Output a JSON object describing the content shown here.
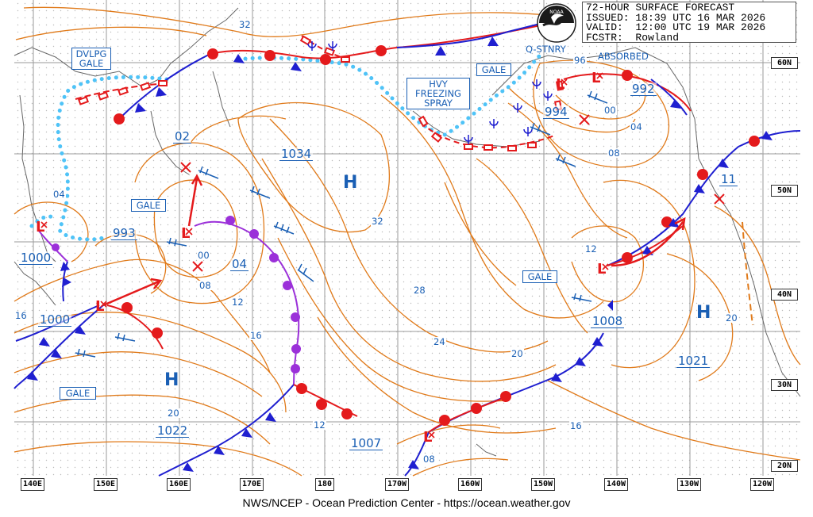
{
  "header": {
    "line1": "72-HOUR SURFACE FORECAST",
    "line2": "ISSUED: 18:39 UTC 16 MAR 2026",
    "line3": "VALID:  12:00 UTC 19 MAR 2026",
    "line4": "FCSTR:  Rowland"
  },
  "logo": {
    "icon": "noaa-logo-icon",
    "text": "NOAA"
  },
  "footer": "NWS/NCEP - Ocean Prediction Center - https://ocean.weather.gov",
  "box_labels": {
    "dvlpg_gale_1": "DVLPG",
    "dvlpg_gale_2": "GALE",
    "gale_west": "GALE",
    "gale_southwest": "GALE",
    "hvy_1": "HVY",
    "hvy_2": "FREEZING",
    "hvy_3": "SPRAY",
    "gale_north": "GALE",
    "gale_east": "GALE"
  },
  "plain_labels": {
    "qstnry": "Q-STNRY",
    "absorbed": "ABSORBED"
  },
  "pressure_centers": {
    "c1034": "1034",
    "c993": "993",
    "c1000_a": "1000",
    "c1000_b": "1000",
    "c1022": "1022",
    "c1007": "1007",
    "c04": "04",
    "c02": "02",
    "c994": "994",
    "c992": "992",
    "c1008": "1008",
    "c1021": "1021",
    "c11": "11"
  },
  "symbols": {
    "high": "H",
    "low": "L"
  },
  "isobar_labels": {
    "i32a": "32",
    "i32b": "32",
    "i04a": "04",
    "i16a": "16",
    "i00a": "00",
    "i08a": "08",
    "i12a": "12",
    "i16b": "16",
    "i20a": "20",
    "i12b": "12",
    "i28": "28",
    "i24": "24",
    "i20b": "20",
    "i12c": "12",
    "i16c": "16",
    "i08b": "08",
    "i20c": "20",
    "i96": "96",
    "i00b": "00",
    "i04b": "04",
    "i08c": "08"
  },
  "lat_labels": [
    "60N",
    "50N",
    "40N",
    "30N",
    "20N"
  ],
  "lon_labels": [
    "140E",
    "150E",
    "160E",
    "170E",
    "180",
    "170W",
    "160W",
    "150W",
    "140W",
    "130W",
    "120W"
  ],
  "colors": {
    "isobar": "#e07a1a",
    "warm_front": "#e41a1c",
    "cold_front": "#1f1fd0",
    "occluded_front": "#9b30d9",
    "ice_edge": "#4fc3f7",
    "label_blue": "#1a5fb4",
    "grid": "#9a9a9a"
  }
}
